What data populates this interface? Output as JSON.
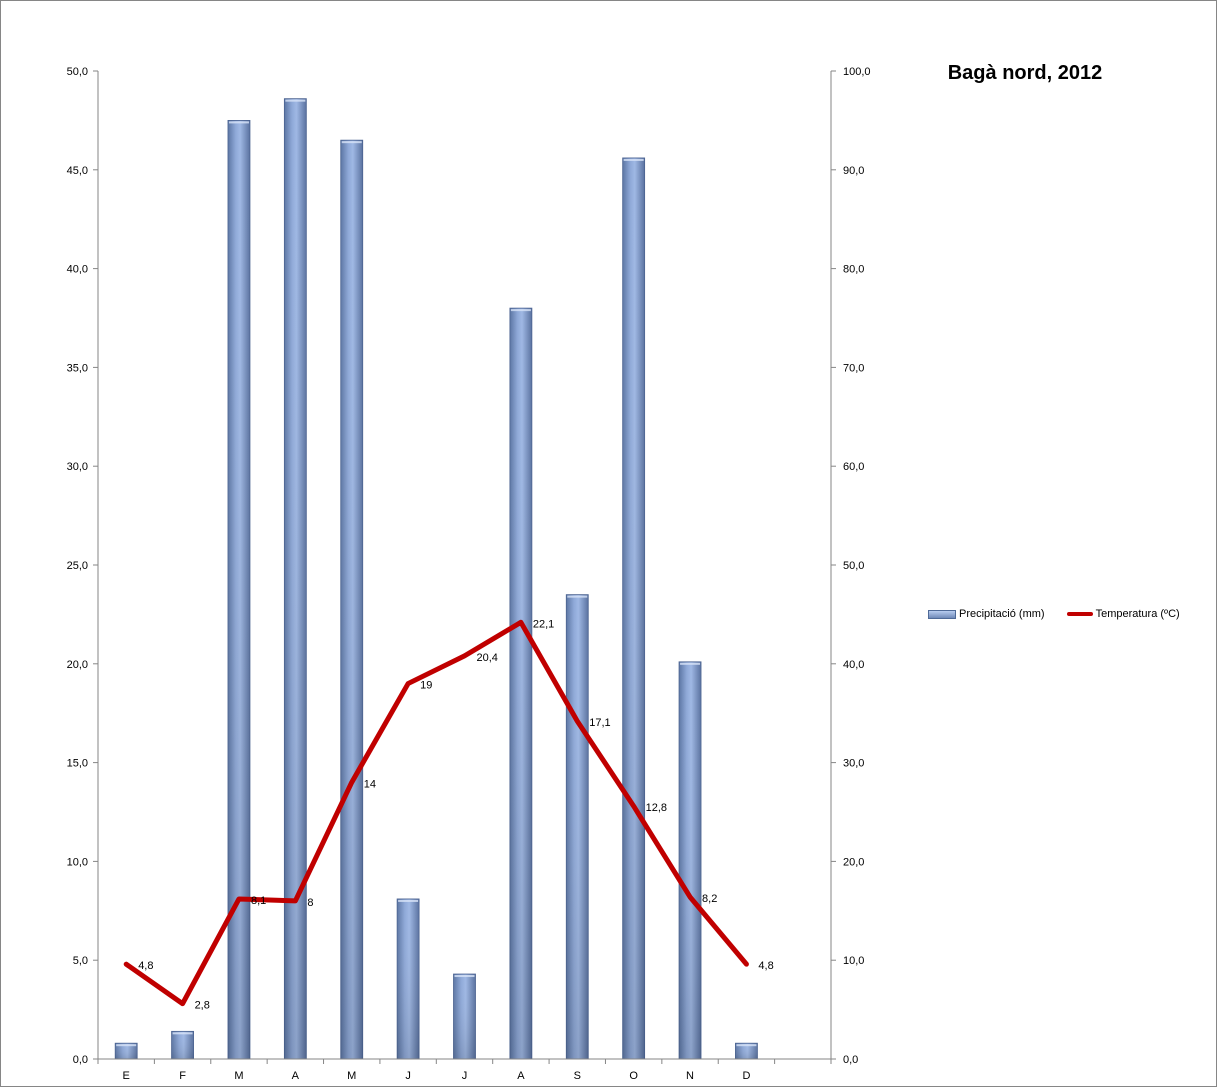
{
  "chart_data": {
    "type": "bar+line",
    "title": "Bagà nord, 2012",
    "categories": [
      "E",
      "F",
      "M",
      "A",
      "M",
      "J",
      "J",
      "A",
      "S",
      "O",
      "N",
      "D"
    ],
    "series": [
      {
        "name": "Precipitació (mm)",
        "type": "bar",
        "axis": "left",
        "values": [
          0.8,
          1.4,
          47.5,
          48.6,
          46.5,
          8.1,
          4.3,
          38.0,
          23.5,
          45.6,
          20.1,
          0.8
        ],
        "color": "#7f9bcb"
      },
      {
        "name": "Temperatura (ºC)",
        "type": "line",
        "axis": "right",
        "values": [
          4.8,
          2.8,
          8.1,
          8,
          14,
          19,
          20.4,
          22.1,
          17.1,
          12.8,
          8.2,
          4.8
        ],
        "labels": [
          "4,8",
          "2,8",
          "8,1",
          "8",
          "14",
          "19",
          "20,4",
          "22,1",
          "17,1",
          "12,8",
          "8,2",
          "4,8"
        ],
        "color": "#c00000"
      }
    ],
    "y_left": {
      "min": 0,
      "max": 50,
      "ticks": [
        "0,0",
        "5,0",
        "10,0",
        "15,0",
        "20,0",
        "25,0",
        "30,0",
        "35,0",
        "40,0",
        "45,0",
        "50,0"
      ]
    },
    "y_right": {
      "min": 0,
      "max": 100,
      "ticks": [
        "0,0",
        "10,0",
        "20,0",
        "30,0",
        "40,0",
        "50,0",
        "60,0",
        "70,0",
        "80,0",
        "90,0",
        "100,0"
      ]
    },
    "grid": false,
    "legend": "right"
  }
}
